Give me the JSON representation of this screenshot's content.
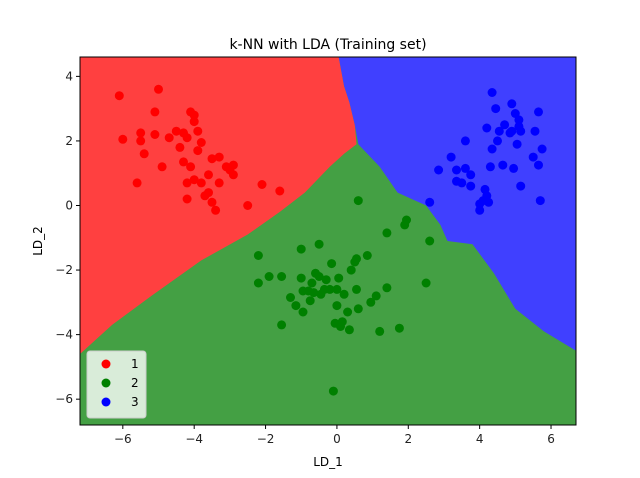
{
  "chart_data": {
    "type": "scatter",
    "title": "k-NN with LDA (Training set)",
    "xlabel": "LD_1",
    "ylabel": "LD_2",
    "xlim": [
      -7.2,
      6.7
    ],
    "ylim": [
      -6.8,
      4.6
    ],
    "xticks": [
      -6,
      -4,
      -2,
      0,
      2,
      4,
      6
    ],
    "yticks": [
      -6,
      -4,
      -2,
      0,
      2,
      4
    ],
    "legend_position": "bottom-left",
    "region_colors": {
      "1": "#ff4040",
      "2": "#44a044",
      "3": "#4040ff"
    },
    "decision_regions": {
      "class_1": [
        [
          -7.2,
          4.6
        ],
        [
          0.05,
          4.6
        ],
        [
          0.2,
          3.7
        ],
        [
          0.35,
          3.2
        ],
        [
          0.5,
          2.5
        ],
        [
          0.55,
          1.9
        ],
        [
          0.2,
          1.6
        ],
        [
          -0.2,
          1.2
        ],
        [
          -0.9,
          0.4
        ],
        [
          -1.6,
          -0.2
        ],
        [
          -2.5,
          -0.9
        ],
        [
          -3.8,
          -1.7
        ],
        [
          -5.2,
          -2.8
        ],
        [
          -6.3,
          -3.7
        ],
        [
          -7.2,
          -4.6
        ]
      ],
      "class_3": [
        [
          0.05,
          4.6
        ],
        [
          6.7,
          4.6
        ],
        [
          6.7,
          -4.5
        ],
        [
          5.8,
          -3.9
        ],
        [
          5.0,
          -3.2
        ],
        [
          4.4,
          -2.1
        ],
        [
          3.8,
          -1.2
        ],
        [
          3.1,
          -1.1
        ],
        [
          2.9,
          -0.6
        ],
        [
          2.5,
          0.0
        ],
        [
          1.7,
          0.4
        ],
        [
          1.2,
          1.2
        ],
        [
          0.6,
          1.9
        ],
        [
          0.5,
          2.5
        ],
        [
          0.35,
          3.2
        ],
        [
          0.2,
          3.7
        ]
      ]
    },
    "series": [
      {
        "name": "1",
        "color": "#ff0000",
        "points": [
          [
            -6.1,
            3.4
          ],
          [
            -6.0,
            2.05
          ],
          [
            -5.5,
            2.25
          ],
          [
            -5.5,
            2.0
          ],
          [
            -5.4,
            1.6
          ],
          [
            -5.1,
            2.9
          ],
          [
            -5.1,
            2.2
          ],
          [
            -5.0,
            3.6
          ],
          [
            -4.9,
            1.2
          ],
          [
            -5.6,
            0.7
          ],
          [
            -4.7,
            2.1
          ],
          [
            -4.5,
            2.3
          ],
          [
            -4.4,
            1.8
          ],
          [
            -4.3,
            2.25
          ],
          [
            -4.3,
            1.35
          ],
          [
            -4.1,
            2.9
          ],
          [
            -4.2,
            2.1
          ],
          [
            -4.0,
            2.8
          ],
          [
            -4.0,
            2.6
          ],
          [
            -3.9,
            2.3
          ],
          [
            -4.1,
            1.2
          ],
          [
            -4.2,
            0.7
          ],
          [
            -4.0,
            0.8
          ],
          [
            -3.9,
            1.7
          ],
          [
            -3.8,
            1.95
          ],
          [
            -3.8,
            0.7
          ],
          [
            -3.6,
            0.95
          ],
          [
            -3.5,
            1.45
          ],
          [
            -3.3,
            1.5
          ],
          [
            -3.1,
            1.2
          ],
          [
            -3.0,
            1.1
          ],
          [
            -2.9,
            1.25
          ],
          [
            -2.9,
            0.95
          ],
          [
            -3.7,
            0.3
          ],
          [
            -3.6,
            0.4
          ],
          [
            -3.5,
            0.1
          ],
          [
            -3.4,
            -0.15
          ],
          [
            -3.3,
            0.7
          ],
          [
            -2.5,
            0.0
          ],
          [
            -2.1,
            0.65
          ],
          [
            -1.6,
            0.45
          ],
          [
            -4.2,
            0.2
          ]
        ]
      },
      {
        "name": "2",
        "color": "#008000",
        "points": [
          [
            -2.2,
            -1.55
          ],
          [
            -2.2,
            -2.4
          ],
          [
            -1.9,
            -2.2
          ],
          [
            -1.55,
            -2.2
          ],
          [
            -1.55,
            -3.7
          ],
          [
            -1.3,
            -2.85
          ],
          [
            -1.15,
            -3.1
          ],
          [
            -1.0,
            -2.25
          ],
          [
            -1.0,
            -1.35
          ],
          [
            -0.95,
            -2.65
          ],
          [
            -0.95,
            -3.3
          ],
          [
            -0.8,
            -2.65
          ],
          [
            -0.75,
            -2.95
          ],
          [
            -0.7,
            -2.4
          ],
          [
            -0.65,
            -2.7
          ],
          [
            -0.6,
            -2.1
          ],
          [
            -0.5,
            -1.2
          ],
          [
            -0.5,
            -2.2
          ],
          [
            -0.45,
            -2.75
          ],
          [
            -0.35,
            -2.6
          ],
          [
            -0.3,
            -2.3
          ],
          [
            -0.2,
            -2.6
          ],
          [
            -0.15,
            -1.8
          ],
          [
            -0.1,
            -5.75
          ],
          [
            -0.05,
            -3.65
          ],
          [
            0.0,
            -3.1
          ],
          [
            0.0,
            -2.6
          ],
          [
            0.05,
            -2.25
          ],
          [
            0.1,
            -3.75
          ],
          [
            0.15,
            -3.6
          ],
          [
            0.2,
            -2.75
          ],
          [
            0.3,
            -3.3
          ],
          [
            0.35,
            -3.85
          ],
          [
            0.4,
            -2.0
          ],
          [
            0.5,
            -1.75
          ],
          [
            0.55,
            -2.6
          ],
          [
            0.55,
            -1.65
          ],
          [
            0.6,
            0.15
          ],
          [
            0.85,
            -1.55
          ],
          [
            0.95,
            -3.0
          ],
          [
            1.1,
            -2.8
          ],
          [
            1.2,
            -3.9
          ],
          [
            1.4,
            -0.85
          ],
          [
            1.4,
            -2.55
          ],
          [
            1.75,
            -3.8
          ],
          [
            1.9,
            -0.6
          ],
          [
            1.95,
            -0.45
          ],
          [
            2.5,
            -2.4
          ],
          [
            2.6,
            -1.1
          ],
          [
            0.6,
            -3.2
          ]
        ]
      },
      {
        "name": "3",
        "color": "#0000ff",
        "points": [
          [
            2.6,
            0.1
          ],
          [
            2.85,
            1.1
          ],
          [
            3.2,
            1.5
          ],
          [
            3.35,
            1.1
          ],
          [
            3.35,
            0.75
          ],
          [
            3.5,
            0.7
          ],
          [
            3.6,
            2.0
          ],
          [
            3.6,
            1.15
          ],
          [
            3.75,
            0.95
          ],
          [
            3.75,
            0.6
          ],
          [
            4.0,
            -0.15
          ],
          [
            4.0,
            0.05
          ],
          [
            4.1,
            0.15
          ],
          [
            4.2,
            0.3
          ],
          [
            4.15,
            0.5
          ],
          [
            4.25,
            0.1
          ],
          [
            4.2,
            2.4
          ],
          [
            4.3,
            1.2
          ],
          [
            4.35,
            1.75
          ],
          [
            4.35,
            3.5
          ],
          [
            4.45,
            3.0
          ],
          [
            4.5,
            2.0
          ],
          [
            4.55,
            2.3
          ],
          [
            4.65,
            1.25
          ],
          [
            4.7,
            2.5
          ],
          [
            4.85,
            2.25
          ],
          [
            4.9,
            2.3
          ],
          [
            4.9,
            3.15
          ],
          [
            4.95,
            1.15
          ],
          [
            5.0,
            2.85
          ],
          [
            5.05,
            1.9
          ],
          [
            5.1,
            2.45
          ],
          [
            5.1,
            2.65
          ],
          [
            5.15,
            2.3
          ],
          [
            5.15,
            0.6
          ],
          [
            5.5,
            1.5
          ],
          [
            5.55,
            2.3
          ],
          [
            5.65,
            2.9
          ],
          [
            5.7,
            0.15
          ],
          [
            5.75,
            1.75
          ],
          [
            5.65,
            1.25
          ]
        ]
      }
    ]
  }
}
